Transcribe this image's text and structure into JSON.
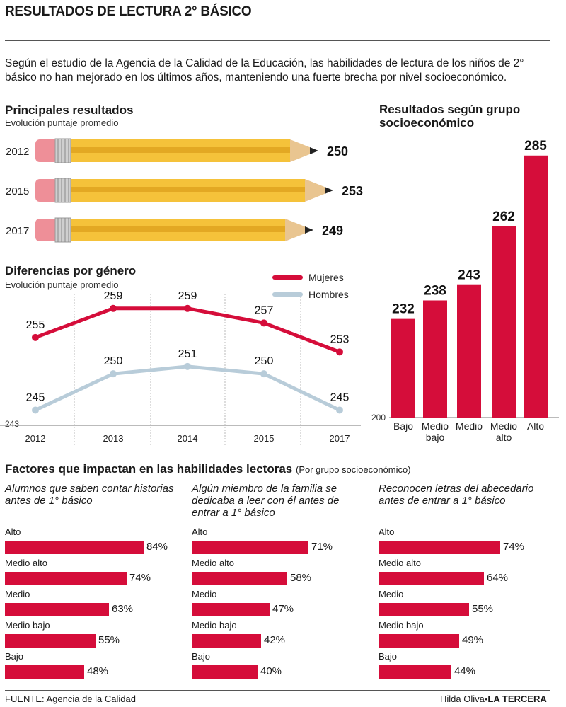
{
  "header": {
    "title": "RESULTADOS DE LECTURA 2° BÁSICO",
    "intro": "Según el estudio de la Agencia de la Calidad de la Educación, las habilidades de lectura de los niños de 2° básico no han mejorado en los últimos años, manteniendo una fuerte brecha por nivel socioeconómico."
  },
  "colors": {
    "accent": "#d50d3a",
    "secondary": "#b8ccd9",
    "pencil": "#f5c23a"
  },
  "footer": {
    "source": "FUENTE: Agencia de la Calidad",
    "author": "Hilda Oliva",
    "brand": "LA TERCERA"
  },
  "chart_data": [
    {
      "type": "bar",
      "title": "Principales resultados",
      "subtitle": "Evolución puntaje promedio",
      "categories": [
        "2012",
        "2015",
        "2017"
      ],
      "values": [
        250,
        253,
        249
      ]
    },
    {
      "type": "line",
      "title": "Diferencias por género",
      "subtitle": "Evolución puntaje promedio",
      "x": [
        "2012",
        "2013",
        "2014",
        "2015",
        "2017"
      ],
      "ymin_label": "243",
      "ylim": [
        243,
        262
      ],
      "series": [
        {
          "name": "Mujeres",
          "values": [
            255,
            259,
            259,
            257,
            253
          ],
          "color": "#d50d3a"
        },
        {
          "name": "Hombres",
          "values": [
            245,
            250,
            251,
            250,
            245
          ],
          "color": "#b8ccd9"
        }
      ],
      "legend": "top-right"
    },
    {
      "type": "bar",
      "title": "Resultados según grupo socioeconómico",
      "categories": [
        "Bajo",
        "Medio bajo",
        "Medio",
        "Medio alto",
        "Alto"
      ],
      "values": [
        232,
        238,
        243,
        262,
        285
      ],
      "baseline_label": "200",
      "ylim": [
        200,
        290
      ]
    },
    {
      "type": "bar",
      "section": "Factores que impactan en las habilidades lectoras",
      "section_note": "(Por grupo socioeconómico)",
      "title": "Alumnos que saben contar historias antes de 1° básico",
      "categories": [
        "Alto",
        "Medio alto",
        "Medio",
        "Medio bajo",
        "Bajo"
      ],
      "values": [
        84,
        74,
        63,
        55,
        48
      ],
      "unit": "%"
    },
    {
      "type": "bar",
      "title": "Algún miembro de la familia se dedicaba a leer con él antes de entrar a 1° básico",
      "categories": [
        "Alto",
        "Medio alto",
        "Medio",
        "Medio bajo",
        "Bajo"
      ],
      "values": [
        71,
        58,
        47,
        42,
        40
      ],
      "unit": "%"
    },
    {
      "type": "bar",
      "title": "Reconocen letras del abecedario antes de entrar a 1° básico",
      "categories": [
        "Alto",
        "Medio alto",
        "Medio",
        "Medio bajo",
        "Bajo"
      ],
      "values": [
        74,
        64,
        55,
        49,
        44
      ],
      "unit": "%"
    }
  ]
}
